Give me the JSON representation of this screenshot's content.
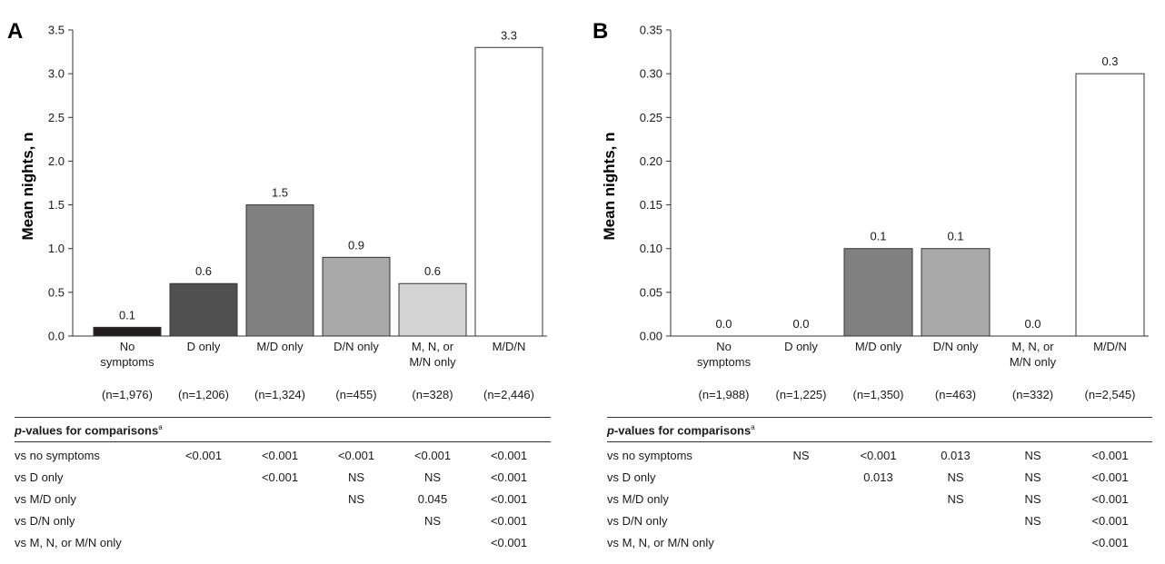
{
  "chart_data": [
    {
      "panel": "A",
      "type": "bar",
      "ylabel": "Mean nights, n",
      "ylim": [
        0,
        3.5
      ],
      "yticks": [
        "0.0",
        "0.5",
        "1.0",
        "1.5",
        "2.0",
        "2.5",
        "3.0",
        "3.5"
      ],
      "categories": [
        [
          "No",
          "symptoms"
        ],
        [
          "D only"
        ],
        [
          "M/D only"
        ],
        [
          "D/N only"
        ],
        [
          "M, N, or",
          "M/N only"
        ],
        [
          "M/D/N"
        ]
      ],
      "n_labels": [
        "(n=1,976)",
        "(n=1,206)",
        "(n=1,324)",
        "(n=455)",
        "(n=328)",
        "(n=2,446)"
      ],
      "values": [
        0.1,
        0.6,
        1.5,
        0.9,
        0.6,
        3.3
      ],
      "value_labels": [
        "0.1",
        "0.6",
        "1.5",
        "0.9",
        "0.6",
        "3.3"
      ],
      "bar_colors": [
        "#231f20",
        "#505050",
        "#808080",
        "#a9a9a9",
        "#d4d4d4",
        "#ffffff"
      ],
      "pvalues": {
        "header": "p-values for comparisons",
        "rows": [
          {
            "label": "vs no symptoms",
            "cells": [
              "<0.001",
              "<0.001",
              "<0.001",
              "<0.001",
              "<0.001"
            ]
          },
          {
            "label": "vs D only",
            "cells": [
              "",
              "<0.001",
              "NS",
              "NS",
              "<0.001"
            ]
          },
          {
            "label": "vs M/D only",
            "cells": [
              "",
              "",
              "NS",
              "0.045",
              "<0.001"
            ]
          },
          {
            "label": "vs D/N only",
            "cells": [
              "",
              "",
              "",
              "NS",
              "<0.001"
            ]
          },
          {
            "label": "vs M, N, or M/N only",
            "cells": [
              "",
              "",
              "",
              "",
              "<0.001"
            ]
          }
        ]
      }
    },
    {
      "panel": "B",
      "type": "bar",
      "ylabel": "Mean nights, n",
      "ylim": [
        0,
        0.35
      ],
      "yticks": [
        "0.00",
        "0.05",
        "0.10",
        "0.15",
        "0.20",
        "0.25",
        "0.30",
        "0.35"
      ],
      "categories": [
        [
          "No",
          "symptoms"
        ],
        [
          "D only"
        ],
        [
          "M/D only"
        ],
        [
          "D/N only"
        ],
        [
          "M, N, or",
          "M/N only"
        ],
        [
          "M/D/N"
        ]
      ],
      "n_labels": [
        "(n=1,988)",
        "(n=1,225)",
        "(n=1,350)",
        "(n=463)",
        "(n=332)",
        "(n=2,545)"
      ],
      "values": [
        0.0,
        0.0,
        0.1,
        0.1,
        0.0,
        0.3
      ],
      "value_labels": [
        "0.0",
        "0.0",
        "0.1",
        "0.1",
        "0.0",
        "0.3"
      ],
      "bar_colors": [
        "#231f20",
        "#505050",
        "#808080",
        "#a9a9a9",
        "#d4d4d4",
        "#ffffff"
      ],
      "pvalues": {
        "header": "p-values for comparisons",
        "rows": [
          {
            "label": "vs no symptoms",
            "cells": [
              "NS",
              "<0.001",
              "0.013",
              "NS",
              "<0.001"
            ]
          },
          {
            "label": "vs D only",
            "cells": [
              "",
              "0.013",
              "NS",
              "NS",
              "<0.001"
            ]
          },
          {
            "label": "vs M/D only",
            "cells": [
              "",
              "",
              "NS",
              "NS",
              "<0.001"
            ]
          },
          {
            "label": "vs D/N only",
            "cells": [
              "",
              "",
              "",
              "NS",
              "<0.001"
            ]
          },
          {
            "label": "vs M, N, or M/N only",
            "cells": [
              "",
              "",
              "",
              "",
              "<0.001"
            ]
          }
        ]
      }
    }
  ]
}
